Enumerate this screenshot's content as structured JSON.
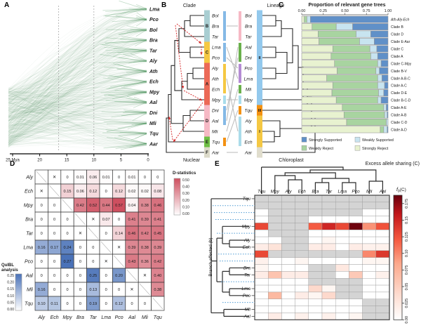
{
  "panels": {
    "a": "A",
    "b": "B",
    "c": "C",
    "d": "D",
    "e": "E"
  },
  "chart_data": [
    {
      "panel": "A",
      "type": "tree-cloud",
      "taxa": [
        "Lma",
        "Pco",
        "Bol",
        "Bra",
        "Tar",
        "Aly",
        "Ath",
        "Ech",
        "Mpy",
        "Aal",
        "Dni",
        "Mli",
        "Tqu",
        "Aar"
      ],
      "x_ticks": [
        "25 Mya",
        "20",
        "15",
        "10",
        "5",
        "0"
      ],
      "x_range_mya": [
        25,
        0
      ],
      "dashed_guides_mya": [
        16.5,
        10
      ],
      "color": "#1e7b33"
    },
    {
      "panel": "B",
      "type": "tanglegram",
      "left_header": "Clade",
      "right_header": "Lineage",
      "left_footer": "Nuclear",
      "right_footer": "Chloroplast",
      "left_taxa": [
        "Bol",
        "Bra",
        "Tar",
        "Lma",
        "Pco",
        "Aly",
        "Ath",
        "Ech",
        "Mpy",
        "Dni",
        "Aal",
        "Mli",
        "Tqu",
        "Aar"
      ],
      "right_taxa": [
        "Bol",
        "Bra",
        "Tar",
        "Aal",
        "Dni",
        "Pco",
        "Lma",
        "Mli",
        "Mpy",
        "Tqu",
        "Aly",
        "Ath",
        "Ech",
        "Aar"
      ],
      "left_clades": [
        {
          "label": "B",
          "from": 0,
          "to": 2,
          "color": "#a9ced2"
        },
        {
          "label": "C",
          "from": 3,
          "to": 4,
          "color": "#f5c843"
        },
        {
          "label": "A",
          "from": 5,
          "to": 8,
          "color": "#ec6a57"
        },
        {
          "label": "D",
          "from": 9,
          "to": 11,
          "color": "#f6b9c5"
        },
        {
          "label": "E",
          "from": 12,
          "to": 12,
          "color": "#6fbf44"
        },
        {
          "label": "F",
          "from": 13,
          "to": 13,
          "color": "#dcdac9"
        }
      ],
      "right_lineages": [
        {
          "label": "II",
          "from": 0,
          "to": 8,
          "color": "#93c9ed"
        },
        {
          "label": "III",
          "from": 9,
          "to": 9,
          "color": "#f39112"
        },
        {
          "label": "I",
          "from": 10,
          "to": 12,
          "color": "#f5c843"
        },
        {
          "label": "",
          "from": 13,
          "to": 13,
          "color": "#e0ddcd"
        }
      ],
      "left_support_bars": [
        {
          "from": 0,
          "to": 2,
          "color": "#85b9e6"
        },
        {
          "from": 3,
          "to": 4,
          "color": "#85b9e6"
        },
        {
          "from": 5,
          "to": 7,
          "color": "#f5c843"
        },
        {
          "from": 8,
          "to": 8,
          "color": "#aadcea"
        },
        {
          "from": 9,
          "to": 10,
          "color": "#85b9e6"
        },
        {
          "from": 12,
          "to": 12,
          "color": "#f39112"
        }
      ],
      "right_support_bars": [
        {
          "from": 0,
          "to": 2,
          "color": "#f6b9c5"
        },
        {
          "from": 3,
          "to": 4,
          "color": "#6ab04c"
        },
        {
          "from": 5,
          "to": 6,
          "color": "#b58cd4"
        },
        {
          "from": 7,
          "to": 7,
          "color": "#6ab04c"
        },
        {
          "from": 8,
          "to": 8,
          "color": "#aadcea"
        },
        {
          "from": 9,
          "to": 9,
          "color": "#f39112"
        },
        {
          "from": 10,
          "to": 12,
          "color": "#aadcea"
        }
      ],
      "connectors": [
        [
          1,
          1
        ],
        [
          3,
          6
        ],
        [
          4,
          5
        ],
        [
          6,
          11
        ],
        [
          8,
          8
        ],
        [
          9,
          4
        ],
        [
          10,
          3
        ],
        [
          11,
          7
        ],
        [
          12,
          9
        ],
        [
          13,
          13
        ]
      ]
    },
    {
      "panel": "C",
      "type": "bar",
      "stacked": true,
      "title": "Proportion of relevant gene trees",
      "x_ticks": [
        "0.00",
        "0.25",
        "0.50",
        "0.75",
        "1.00"
      ],
      "categories": [
        "Ath-Aly-Ech",
        "Clade B",
        "Clade D",
        "Clade E-Aar",
        "Clade C",
        "Clade A",
        "Clade C-Mpy",
        "Clade B-V",
        "Clade A-B-C",
        "Clade A-C",
        "Clade D-E",
        "Clade B-C-D",
        "Clade A-E",
        "Clade A-B",
        "Clade C-D",
        "Clade A-D"
      ],
      "series": [
        {
          "name": "Strongly Reject",
          "color": "#e8f2d0",
          "values": [
            0.03,
            0.12,
            0.19,
            0.2,
            0.36,
            0.34,
            0.38,
            0.41,
            0.29,
            0.36,
            0.35,
            0.4,
            0.47,
            0.49,
            0.52,
            0.91
          ]
        },
        {
          "name": "Weakly Reject",
          "color": "#a8d4a0",
          "values": [
            0.03,
            0.28,
            0.44,
            0.47,
            0.43,
            0.46,
            0.5,
            0.45,
            0.59,
            0.52,
            0.54,
            0.48,
            0.48,
            0.47,
            0.46,
            0.04
          ]
        },
        {
          "name": "Weakly Supported",
          "color": "#c8e4f0",
          "values": [
            0.04,
            0.19,
            0.17,
            0.17,
            0.08,
            0.08,
            0.04,
            0.04,
            0.05,
            0.08,
            0.06,
            0.04,
            0.03,
            0.03,
            0.02,
            0.04
          ]
        },
        {
          "name": "Strongly Supported",
          "color": "#6090c8",
          "values": [
            0.9,
            0.41,
            0.2,
            0.16,
            0.13,
            0.12,
            0.08,
            0.1,
            0.07,
            0.04,
            0.05,
            0.08,
            0.02,
            0.01,
            0.0,
            0.01
          ]
        }
      ],
      "legend": [
        {
          "name": "Strongly Supported",
          "color": "#6090c8"
        },
        {
          "name": "Weakly Supported",
          "color": "#c8e4f0"
        },
        {
          "name": "Weakly Reject",
          "color": "#a8d4a0"
        },
        {
          "name": "Strongly Reject",
          "color": "#e8f2d0"
        }
      ]
    },
    {
      "panel": "D",
      "type": "heatmap-matrix",
      "upper_label": "D-statistics",
      "lower_label_1": "QuIBL",
      "lower_label_2": "analysis",
      "taxa": [
        "Aly",
        "Ech",
        "Mpy",
        "Bra",
        "Tar",
        "Lma",
        "Pco",
        "Aal",
        "Mli",
        "Tqu"
      ],
      "cells": [
        [
          "d",
          "x",
          "0",
          "0.01",
          "0.06",
          "0.01",
          "0",
          "0.01",
          "0",
          "0"
        ],
        [
          "x",
          "d",
          "0.15",
          "0.06",
          "0.12",
          "0",
          "0.12",
          "0.02",
          "0.02",
          "0.08"
        ],
        [
          "0",
          "0",
          "d",
          "0.42",
          "0.52",
          "0.44",
          "0.57",
          "0.04",
          "0.38",
          "0.46"
        ],
        [
          "0",
          "0",
          "0",
          "d",
          "x",
          "0.07",
          "0",
          "0.41",
          "0.39",
          "0.41"
        ],
        [
          "0",
          "0",
          "0",
          "x",
          "d",
          "0",
          "0.14",
          "0.46",
          "0.42",
          "0.45"
        ],
        [
          "0.16",
          "0.17",
          "0.24",
          "0",
          "0",
          "d",
          "x",
          "0.39",
          "0.38",
          "0.39"
        ],
        [
          "0",
          "0",
          "0.27",
          "0",
          "0",
          "x",
          "d",
          "0.43",
          "0.36",
          "0.42"
        ],
        [
          "0",
          "0",
          "0",
          "0",
          "0.25",
          "0",
          "0.20",
          "d",
          "x",
          "0.40"
        ],
        [
          "0.16",
          "0",
          "0",
          "0",
          "0.13",
          "0",
          "0",
          "x",
          "d",
          "0.38"
        ],
        [
          "0.10",
          "0.11",
          "0",
          "0",
          "0.19",
          "0",
          "0.12",
          "0",
          "0",
          "d"
        ]
      ],
      "upper_ticks": [
        "0.50",
        "0.40",
        "0.30",
        "0.20",
        "0.10",
        "0.00"
      ],
      "lower_ticks": [
        "0.25",
        "0.20",
        "0.15",
        "0.10",
        "0.05",
        "0.00"
      ],
      "upper_max": 0.57,
      "lower_max": 0.27,
      "upper_color": "#ce4f5f",
      "lower_color": "#4a72b8"
    },
    {
      "panel": "E",
      "type": "heatmap",
      "title": "Excess allele sharing (C)",
      "ylabel": "Branch affected (b)",
      "colorbar_label_f": "f",
      "colorbar_label_sub": "b",
      "colorbar_label_rest": "(C)",
      "columns": [
        "Tqu",
        "Mpy",
        "Aly",
        "Ech",
        "Bra",
        "Tar",
        "Lma",
        "Pco",
        "Mli",
        "Aal"
      ],
      "row_labels": [
        "Tqu",
        "",
        "",
        "",
        "Mpy",
        "",
        "Aly",
        "Ech",
        "",
        "",
        "Bra",
        "Tar",
        "",
        "Lma",
        "Pco",
        "",
        "Mli",
        "Aal"
      ],
      "internal_rows": [
        1,
        2,
        3,
        5,
        8,
        9,
        12,
        15
      ],
      "values": [
        [
          null,
          null,
          null,
          null,
          null,
          null,
          null,
          null,
          null,
          null
        ],
        [
          null,
          null,
          null,
          null,
          null,
          null,
          null,
          null,
          null,
          null
        ],
        [
          0,
          null,
          null,
          null,
          null,
          null,
          null,
          null,
          0,
          0
        ],
        [
          0,
          null,
          null,
          null,
          0,
          0,
          0,
          0,
          0,
          0
        ],
        [
          0.13,
          null,
          null,
          null,
          0.12,
          0.15,
          0.13,
          0.185,
          0.095,
          0.125
        ],
        [
          0,
          null,
          null,
          null,
          0,
          0,
          0,
          0,
          0,
          0
        ],
        [
          0,
          0,
          null,
          null,
          0,
          0.01,
          0,
          0,
          0,
          0
        ],
        [
          0.02,
          0.03,
          null,
          null,
          0.02,
          0.02,
          0,
          0.02,
          0.015,
          0.015
        ],
        [
          0.13,
          null,
          null,
          null,
          null,
          null,
          null,
          null,
          0.1,
          0.14
        ],
        [
          0.015,
          0,
          0,
          0.01,
          0,
          0,
          0,
          0,
          0.01,
          0.01
        ],
        [
          0.01,
          0,
          0,
          0,
          null,
          null,
          0.025,
          0,
          0,
          0
        ],
        [
          0.02,
          0.06,
          0.02,
          0.02,
          null,
          null,
          0,
          0.055,
          0,
          0.015
        ],
        [
          0,
          0,
          0,
          0,
          null,
          null,
          null,
          null,
          0,
          0
        ],
        [
          0,
          0,
          0,
          0,
          0.04,
          0.01,
          null,
          null,
          0,
          0
        ],
        [
          0,
          0.07,
          0,
          0.02,
          0.01,
          0.04,
          null,
          null,
          0,
          0
        ],
        [
          0,
          0,
          0,
          0,
          0,
          0,
          0,
          0,
          null,
          null
        ],
        [
          0,
          0,
          0,
          0,
          0,
          0,
          0,
          0,
          null,
          null
        ],
        [
          0,
          0.02,
          0,
          0.015,
          0,
          0.015,
          0,
          0.01,
          null,
          null
        ]
      ],
      "colorbar_ticks": [
        "0.00",
        "0.025",
        "0.05",
        "0.075",
        "0.10",
        "0.125",
        "0.15",
        "0.175"
      ],
      "vmax": 0.1875,
      "na_color": "#d4d4d4"
    }
  ]
}
